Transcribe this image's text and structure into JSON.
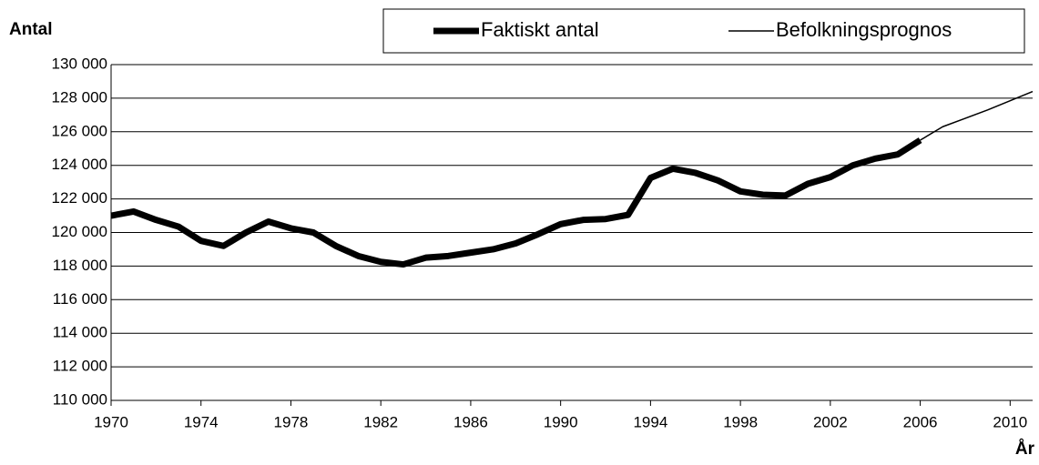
{
  "chart_data": {
    "type": "line",
    "y_label": "Antal",
    "x_label": "År",
    "x": [
      1970,
      1971,
      1972,
      1973,
      1974,
      1975,
      1976,
      1977,
      1978,
      1979,
      1980,
      1981,
      1982,
      1983,
      1984,
      1985,
      1986,
      1987,
      1988,
      1989,
      1990,
      1991,
      1992,
      1993,
      1994,
      1995,
      1996,
      1997,
      1998,
      1999,
      2000,
      2001,
      2002,
      2003,
      2004,
      2005,
      2006,
      2007,
      2008,
      2009,
      2010,
      2011
    ],
    "series": [
      {
        "name": "Faktiskt antal",
        "color": "#000000",
        "width": 7,
        "values": [
          121000,
          121250,
          120750,
          120350,
          119500,
          119200,
          120000,
          120650,
          120250,
          120000,
          119200,
          118600,
          118250,
          118100,
          118500,
          118600,
          118800,
          119000,
          119350,
          119900,
          120500,
          120750,
          120800,
          121050,
          123250,
          123800,
          123550,
          123100,
          122450,
          122250,
          122200,
          122900,
          123300,
          124000,
          124400,
          124650,
          125500,
          null,
          null,
          null,
          null,
          null
        ]
      },
      {
        "name": "Befolkningsprognos",
        "color": "#000000",
        "width": 1.5,
        "values": [
          null,
          null,
          null,
          null,
          null,
          null,
          null,
          null,
          null,
          null,
          null,
          null,
          null,
          null,
          null,
          null,
          null,
          null,
          null,
          null,
          null,
          null,
          null,
          null,
          null,
          null,
          null,
          null,
          null,
          null,
          null,
          null,
          null,
          null,
          null,
          null,
          125500,
          126300,
          126800,
          127300,
          127850,
          128400
        ]
      }
    ],
    "xlim": [
      1970,
      2011
    ],
    "xticks": [
      1970,
      1974,
      1978,
      1982,
      1986,
      1990,
      1994,
      1998,
      2002,
      2006,
      2010
    ],
    "ylim": [
      110000,
      130000
    ],
    "yticks": [
      {
        "value": 110000,
        "label": "110 000"
      },
      {
        "value": 112000,
        "label": "112 000"
      },
      {
        "value": 114000,
        "label": "114 000"
      },
      {
        "value": 116000,
        "label": "116 000"
      },
      {
        "value": 118000,
        "label": "118 000"
      },
      {
        "value": 120000,
        "label": "120 000"
      },
      {
        "value": 122000,
        "label": "122 000"
      },
      {
        "value": 124000,
        "label": "124 000"
      },
      {
        "value": 126000,
        "label": "126 000"
      },
      {
        "value": 128000,
        "label": "128 000"
      },
      {
        "value": 130000,
        "label": "130 000"
      }
    ],
    "grid": true
  }
}
